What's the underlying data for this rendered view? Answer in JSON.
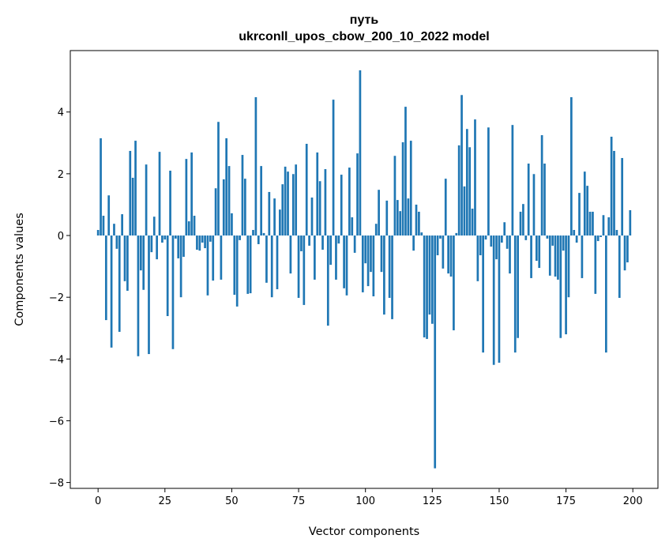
{
  "chart_data": {
    "type": "bar",
    "title": "путь",
    "subtitle": "ukrconll_upos_cbow_200_10_2022 model",
    "xlabel": "Vector components",
    "ylabel": "Components values",
    "xlim": [
      -10.39,
      209.39
    ],
    "ylim": [
      -8.19,
      5.99
    ],
    "grid": false,
    "bar_color": "#1f77b4",
    "bar_width": 0.8,
    "xticks": [
      0,
      25,
      50,
      75,
      100,
      125,
      150,
      175,
      200
    ],
    "xtick_labels": [
      "0",
      "25",
      "50",
      "75",
      "100",
      "125",
      "150",
      "175",
      "200"
    ],
    "yticks": [
      -8,
      -6,
      -4,
      -2,
      0,
      2,
      4
    ],
    "ytick_labels": [
      "−8",
      "−6",
      "−4",
      "−2",
      "0",
      "2",
      "4"
    ],
    "values": [
      0.18,
      3.15,
      0.64,
      -2.74,
      1.3,
      -3.63,
      0.38,
      -0.43,
      -3.12,
      0.69,
      -1.48,
      -1.79,
      2.74,
      1.87,
      3.07,
      -3.91,
      -1.13,
      -1.76,
      2.3,
      -3.84,
      -0.54,
      0.61,
      -0.77,
      2.71,
      -0.23,
      -0.13,
      -2.61,
      2.1,
      -3.68,
      -0.1,
      -0.74,
      -2.0,
      -0.69,
      2.48,
      0.46,
      2.69,
      0.64,
      -0.46,
      -0.49,
      -0.23,
      -0.41,
      -1.94,
      -0.2,
      -1.46,
      1.53,
      3.68,
      -1.43,
      1.82,
      3.15,
      2.25,
      0.72,
      -1.92,
      -2.3,
      -0.15,
      2.61,
      1.84,
      -1.89,
      -1.87,
      0.18,
      4.48,
      -0.28,
      2.25,
      0.08,
      -1.53,
      1.41,
      -2.0,
      1.2,
      -1.74,
      0.84,
      1.66,
      2.23,
      2.07,
      -1.23,
      1.99,
      2.3,
      -2.02,
      -0.51,
      -2.25,
      2.97,
      -0.33,
      1.23,
      -1.43,
      2.69,
      1.76,
      -0.46,
      2.15,
      -2.92,
      -0.95,
      4.4,
      -1.43,
      -0.26,
      1.97,
      -1.71,
      -1.94,
      2.2,
      0.59,
      -0.56,
      2.66,
      5.35,
      -1.84,
      -0.9,
      -1.64,
      -1.18,
      -1.97,
      0.38,
      1.48,
      -1.18,
      -2.56,
      1.13,
      -2.02,
      -2.71,
      2.58,
      1.15,
      0.79,
      3.02,
      4.17,
      1.2,
      3.07,
      -0.49,
      1.0,
      0.77,
      0.1,
      -3.3,
      -3.35,
      -2.56,
      -2.86,
      -7.54,
      -0.64,
      -0.1,
      -1.07,
      1.84,
      -1.23,
      -1.33,
      -3.07,
      0.08,
      2.92,
      4.55,
      1.59,
      3.45,
      2.86,
      0.87,
      3.76,
      -1.48,
      -0.64,
      -3.79,
      -0.13,
      3.5,
      -0.36,
      -4.19,
      -0.77,
      -4.12,
      -0.23,
      0.43,
      -0.43,
      -1.23,
      3.58,
      -3.79,
      -3.32,
      0.77,
      1.02,
      -0.15,
      2.33,
      -1.38,
      1.99,
      -0.82,
      -1.05,
      3.25,
      2.33,
      -0.1,
      -1.3,
      -0.33,
      -1.33,
      -1.43,
      -3.32,
      -0.49,
      -3.2,
      -2.0,
      4.48,
      0.18,
      -0.23,
      1.38,
      -1.38,
      2.07,
      1.61,
      0.77,
      0.77,
      -1.89,
      -0.18,
      -0.05,
      0.66,
      -3.79,
      0.59,
      3.2,
      2.74,
      0.18,
      -2.02,
      2.51,
      -1.13,
      -0.87,
      0.82
    ]
  }
}
